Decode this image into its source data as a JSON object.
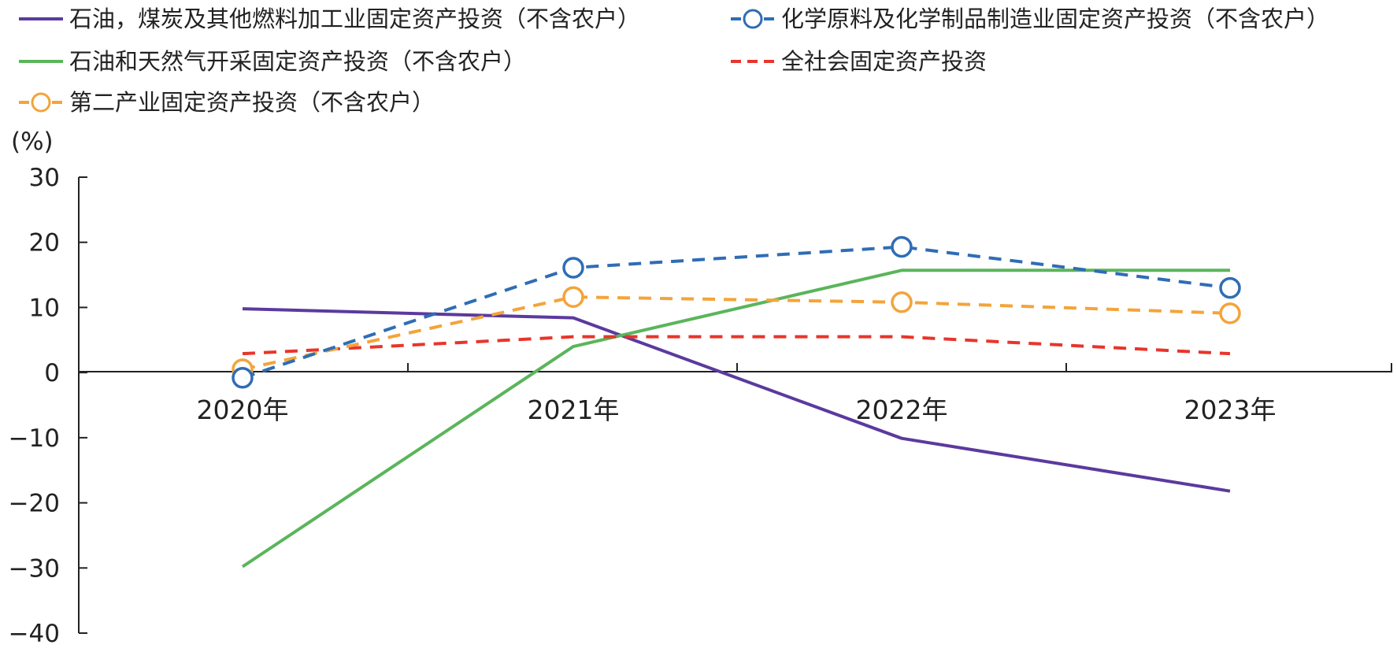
{
  "chart_data": {
    "type": "line",
    "title": "",
    "xlabel": "",
    "ylabel": "",
    "unit_label": "(%)",
    "categories": [
      "2020年",
      "2021年",
      "2022年",
      "2023年"
    ],
    "ylim": [
      -40,
      30
    ],
    "yticks": [
      30,
      20,
      10,
      0,
      -10,
      -20,
      -30,
      -40
    ],
    "ytick_labels": [
      "30",
      "20",
      "10",
      "0",
      "−10",
      "−20",
      "−30",
      "−40"
    ],
    "grid": false,
    "legend_position": "top",
    "series": [
      {
        "name": "石油，煤炭及其他燃料加工业固定资产投资（不含农户）",
        "values": [
          9.8,
          8.4,
          -10.1,
          -18.2
        ],
        "color": "#5b3a9e",
        "dash": "solid",
        "marker": "none"
      },
      {
        "name": "化学原料及化学制品制造业固定资产投资（不含农户）",
        "values": [
          -0.8,
          16.1,
          19.3,
          13.0
        ],
        "color": "#2f6db5",
        "dash": "dashed",
        "marker": "circle"
      },
      {
        "name": "石油和天然气开采固定资产投资（不含农户）",
        "values": [
          -29.8,
          4.0,
          15.7,
          15.7
        ],
        "color": "#5ab55a",
        "dash": "solid",
        "marker": "none"
      },
      {
        "name": "全社会固定资产投资",
        "values": [
          2.9,
          5.5,
          5.5,
          2.9
        ],
        "color": "#e8352b",
        "dash": "dashed",
        "marker": "none"
      },
      {
        "name": "第二产业固定资产投资（不含农户）",
        "values": [
          0.5,
          11.6,
          10.8,
          9.1
        ],
        "color": "#f3a43b",
        "dash": "dashed",
        "marker": "circle"
      }
    ]
  }
}
